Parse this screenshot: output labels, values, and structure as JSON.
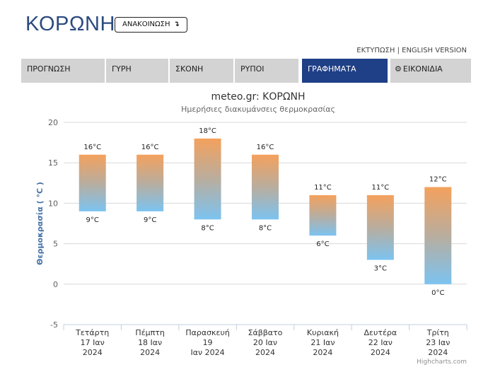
{
  "header": {
    "city": "ΚΟΡΩΝΗ",
    "announce_label": "ΑΝΑΚΟΙΝΩΣΗ",
    "print_label": "ΕΚΤΥΠΩΣΗ",
    "separator": " | ",
    "english_label": "ENGLISH VERSION"
  },
  "tabs": [
    {
      "label": "ΠΡΟΓΝΩΣΗ",
      "active": false
    },
    {
      "label": "ΓΥΡΗ",
      "active": false
    },
    {
      "label": "ΣΚΟΝΗ",
      "active": false
    },
    {
      "label": "ΡΥΠΟΙ",
      "active": false
    },
    {
      "label": "ΓΡΑΦΗΜΑΤΑ",
      "active": true
    },
    {
      "label": "ΕΙΚΟΝΙΔΙΑ",
      "active": false,
      "icon": "gear-icon"
    }
  ],
  "chart_data": {
    "type": "columnrange",
    "title": "meteo.gr: ΚΟΡΩΝΗ",
    "subtitle": "Ημερήσιες διακυμάνσεις θερμοκρασίας",
    "ylabel": "Θερμοκρασία ( °C )",
    "xlabel": "",
    "ylim": [
      -5,
      20
    ],
    "yticks": [
      -5,
      0,
      5,
      10,
      15,
      20
    ],
    "unit": "°C",
    "grid": true,
    "legend": "none",
    "colors": {
      "high": "#f4a15d",
      "low": "#7cc3f0"
    },
    "categories": [
      [
        "Τετάρτη",
        "17 Ιαν",
        "2024"
      ],
      [
        "Πέμπτη",
        "18 Ιαν",
        "2024"
      ],
      [
        "Παρασκευή",
        "19",
        "Ιαν 2024"
      ],
      [
        "Σάββατο",
        "20 Ιαν",
        "2024"
      ],
      [
        "Κυριακή",
        "21 Ιαν",
        "2024"
      ],
      [
        "Δευτέρα",
        "22 Ιαν",
        "2024"
      ],
      [
        "Τρίτη",
        "23 Ιαν",
        "2024"
      ]
    ],
    "series": [
      {
        "low": [
          9,
          9,
          8,
          8,
          6,
          3,
          0
        ],
        "high": [
          16,
          16,
          18,
          16,
          11,
          11,
          12
        ]
      }
    ],
    "credit": "Highcharts.com"
  }
}
